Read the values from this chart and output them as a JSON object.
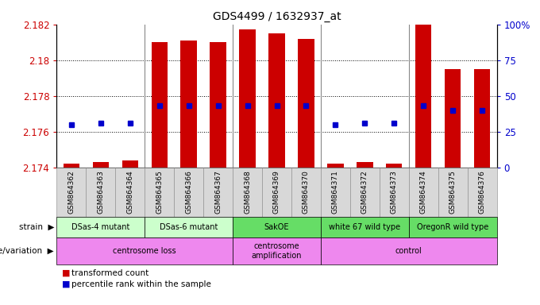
{
  "title": "GDS4499 / 1632937_at",
  "samples": [
    "GSM864362",
    "GSM864363",
    "GSM864364",
    "GSM864365",
    "GSM864366",
    "GSM864367",
    "GSM864368",
    "GSM864369",
    "GSM864370",
    "GSM864371",
    "GSM864372",
    "GSM864373",
    "GSM864374",
    "GSM864375",
    "GSM864376"
  ],
  "bar_values": [
    2.1742,
    2.1743,
    2.1744,
    2.181,
    2.1811,
    2.181,
    2.1817,
    2.1815,
    2.1812,
    2.1742,
    2.1743,
    2.1742,
    2.182,
    2.1795,
    2.1795
  ],
  "percentile_values": [
    30,
    31,
    31,
    43,
    43,
    43,
    43,
    43,
    43,
    30,
    31,
    31,
    43,
    40,
    40
  ],
  "ylim_min": 2.174,
  "ylim_max": 2.182,
  "y_ticks": [
    2.174,
    2.176,
    2.178,
    2.18,
    2.182
  ],
  "y_tick_labels": [
    "2.174",
    "2.176",
    "2.178",
    "2.18",
    "2.182"
  ],
  "right_yticks": [
    0,
    25,
    50,
    75,
    100
  ],
  "right_ytick_labels": [
    "0",
    "25",
    "50",
    "75",
    "100%"
  ],
  "bar_color": "#cc0000",
  "dot_color": "#0000cc",
  "bar_bottom": 2.174,
  "strain_groups": [
    {
      "label": "DSas-4 mutant",
      "start": 0,
      "end": 3,
      "color": "#ccffcc"
    },
    {
      "label": "DSas-6 mutant",
      "start": 3,
      "end": 6,
      "color": "#ccffcc"
    },
    {
      "label": "SakOE",
      "start": 6,
      "end": 9,
      "color": "#66dd66"
    },
    {
      "label": "white 67 wild type",
      "start": 9,
      "end": 12,
      "color": "#66dd66"
    },
    {
      "label": "OregonR wild type",
      "start": 12,
      "end": 15,
      "color": "#66dd66"
    }
  ],
  "genotype_groups": [
    {
      "label": "centrosome loss",
      "start": 0,
      "end": 6
    },
    {
      "label": "centrosome\namplification",
      "start": 6,
      "end": 9
    },
    {
      "label": "control",
      "start": 9,
      "end": 15
    }
  ],
  "genotype_color": "#ee88ee",
  "background_color": "#ffffff",
  "plot_bg": "#ffffff",
  "grid_color": "#000000",
  "separator_color": "#888888",
  "xlabel_bg": "#d8d8d8",
  "xlabel_border": "#888888"
}
